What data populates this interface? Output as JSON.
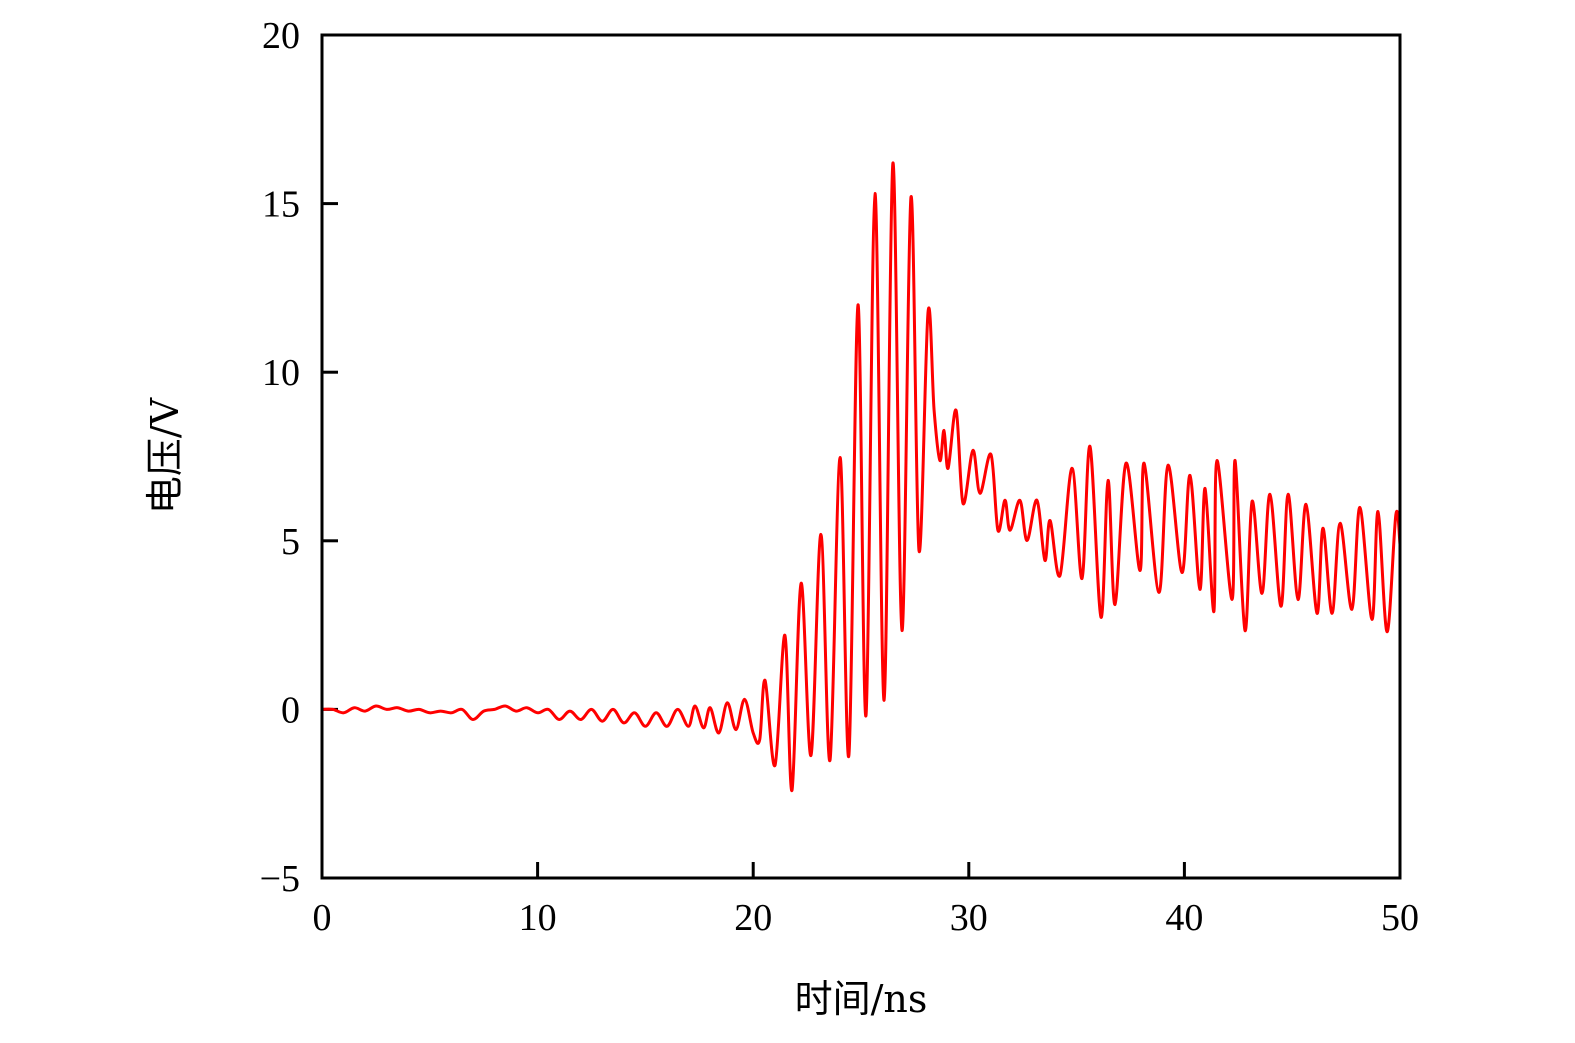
{
  "chart_data": {
    "type": "line",
    "title": "",
    "xlabel": "时间/ns",
    "ylabel": "电压/V",
    "xlim": [
      0,
      50
    ],
    "ylim": [
      -5,
      20
    ],
    "xticks": [
      0,
      10,
      20,
      30,
      40,
      50
    ],
    "xtick_labels": [
      "0",
      "10",
      "20",
      "30",
      "40",
      "50"
    ],
    "yticks": [
      -5,
      0,
      5,
      10,
      15,
      20
    ],
    "ytick_labels": [
      "−5",
      "0",
      "5",
      "10",
      "15",
      "20"
    ],
    "grid": false,
    "legend": "none",
    "series": [
      {
        "color": "#ff0000",
        "x": [
          0,
          0.5,
          1,
          1.5,
          2,
          2.5,
          3,
          3.5,
          4,
          4.5,
          5,
          5.5,
          6,
          6.5,
          7,
          7.5,
          8,
          8.5,
          9,
          9.5,
          10,
          10.5,
          11,
          11.5,
          12,
          12.5,
          13,
          13.5,
          14,
          14.5,
          15,
          15.5,
          16,
          16.5,
          17,
          17.3,
          17.7,
          18,
          18.4,
          18.8,
          19.2,
          19.6,
          20,
          20.3,
          20.55,
          21.01,
          21.47,
          21.8,
          22.22,
          22.68,
          23.14,
          23.56,
          24.03,
          24.44,
          24.86,
          25.23,
          25.65,
          26.07,
          26.48,
          26.9,
          27.32,
          27.69,
          28.11,
          28.39,
          28.66,
          28.85,
          29.04,
          29.41,
          29.73,
          30.19,
          30.52,
          31.03,
          31.35,
          31.68,
          31.91,
          32.37,
          32.7,
          33.16,
          33.53,
          33.77,
          34.23,
          34.79,
          35.25,
          35.62,
          36.13,
          36.46,
          36.78,
          37.29,
          37.94,
          38.13,
          38.82,
          39.24,
          39.89,
          40.26,
          40.72,
          40.96,
          41.37,
          41.51,
          42.21,
          42.35,
          42.81,
          43.14,
          43.6,
          43.97,
          44.48,
          44.81,
          45.27,
          45.64,
          46.15,
          46.43,
          46.85,
          47.22,
          47.77,
          48.14,
          48.7,
          48.98,
          49.4,
          49.81,
          50
        ],
        "y": [
          0,
          0,
          -0.1,
          0.05,
          -0.05,
          0.1,
          0,
          0.05,
          -0.05,
          0,
          -0.1,
          -0.05,
          -0.1,
          0,
          -0.3,
          -0.05,
          0,
          0.1,
          -0.05,
          0.05,
          -0.1,
          0,
          -0.3,
          -0.05,
          -0.3,
          0,
          -0.35,
          0,
          -0.4,
          -0.1,
          -0.5,
          -0.1,
          -0.5,
          0,
          -0.5,
          0.1,
          -0.55,
          0.05,
          -0.7,
          0.2,
          -0.6,
          0.3,
          -0.7,
          -0.9,
          0.86,
          -1.66,
          2.2,
          -2.4,
          3.74,
          -1.36,
          5.19,
          -1.51,
          7.47,
          -1.36,
          12.0,
          -0.18,
          15.3,
          0.27,
          16.2,
          2.34,
          15.2,
          4.71,
          11.8,
          8.87,
          7.38,
          8.27,
          7.15,
          8.87,
          6.11,
          7.68,
          6.41,
          7.56,
          5.31,
          6.2,
          5.31,
          6.2,
          5.01,
          6.2,
          4.42,
          5.6,
          3.97,
          7.15,
          3.88,
          7.8,
          2.73,
          6.79,
          3.11,
          7.3,
          4.12,
          7.3,
          3.47,
          7.24,
          4.06,
          6.94,
          3.56,
          6.55,
          2.9,
          7.38,
          3.26,
          7.38,
          2.34,
          6.17,
          3.44,
          6.38,
          3.06,
          6.38,
          3.26,
          6.08,
          2.85,
          5.37,
          2.85,
          5.52,
          2.97,
          5.99,
          2.67,
          5.87,
          2.3,
          5.78,
          4.9
        ]
      }
    ]
  }
}
